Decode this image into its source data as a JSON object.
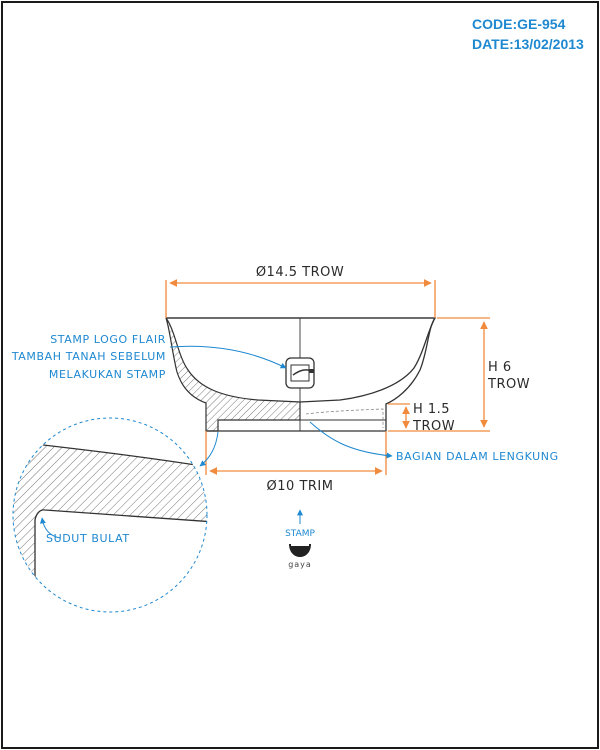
{
  "header": {
    "code": "CODE:GE-954",
    "date": "DATE:13/02/2013"
  },
  "dimensions": {
    "top_diameter": "Ø14.5 TROW",
    "height": {
      "line1": "H 6",
      "line2": "TROW"
    },
    "foot_height": {
      "line1": "H 1.5",
      "line2": "TROW"
    },
    "bottom_diameter": "Ø10 TRIM"
  },
  "notes": {
    "stamp_note": [
      "STAMP LOGO FLAIR",
      "TAMBAH TANAH SEBELUM",
      "MELAKUKAN STAMP"
    ],
    "inner_curve": "BAGIAN DALAM LENGKUNG",
    "rounded_corner": "SUDUT BULAT"
  },
  "logo": {
    "stamp_label": "STAMP",
    "brand": "gaya"
  },
  "colors": {
    "accent_blue": "#1e88d0",
    "dimension_orange": "#f08a3c",
    "outline": "#333333"
  }
}
